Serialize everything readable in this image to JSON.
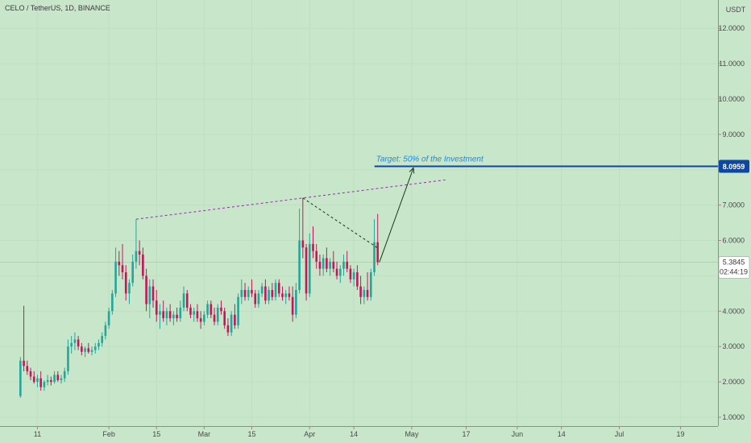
{
  "header": {
    "symbol_info": "CELO / TetherUS, 1D, BINANCE"
  },
  "colors": {
    "background": "#c8e6c9",
    "up": "#26a69a",
    "down": "#c2185b",
    "accent": "#0d47a1",
    "resistance": "#9c27b0",
    "annotation_text": "#1e88e5"
  },
  "chart_data": {
    "type": "candlestick",
    "currency_label": "USDT",
    "y_ticks": [
      "1.0000",
      "2.0000",
      "3.0000",
      "4.0000",
      "5.0000",
      "6.0000",
      "7.0000",
      "8.0000",
      "9.0000",
      "10.0000",
      "11.0000",
      "12.0000"
    ],
    "y_range": [
      0.75,
      12.8
    ],
    "x_ticks": [
      {
        "label": "11",
        "date": "2021-01-11"
      },
      {
        "label": "Feb",
        "date": "2021-02-01"
      },
      {
        "label": "15",
        "date": "2021-02-15"
      },
      {
        "label": "Mar",
        "date": "2021-03-01"
      },
      {
        "label": "15",
        "date": "2021-03-15"
      },
      {
        "label": "Apr",
        "date": "2021-04-01"
      },
      {
        "label": "14",
        "date": "2021-04-14"
      },
      {
        "label": "May",
        "date": "2021-05-01"
      },
      {
        "label": "17",
        "date": "2021-05-17"
      },
      {
        "label": "Jun",
        "date": "2021-06-01"
      },
      {
        "label": "14",
        "date": "2021-06-14"
      },
      {
        "label": "Jul",
        "date": "2021-07-01"
      },
      {
        "label": "19",
        "date": "2021-07-19"
      }
    ],
    "x_range": [
      "2020-12-31",
      "2021-07-30"
    ],
    "start_date": "2021-01-06",
    "candles": [
      [
        1.6,
        2.7,
        1.55,
        2.6
      ],
      [
        2.6,
        4.15,
        2.3,
        2.45
      ],
      [
        2.45,
        2.6,
        2.2,
        2.3
      ],
      [
        2.3,
        2.4,
        2.05,
        2.15
      ],
      [
        2.15,
        2.3,
        1.95,
        2.0
      ],
      [
        2.0,
        2.2,
        1.85,
        2.1
      ],
      [
        2.1,
        2.3,
        1.75,
        1.85
      ],
      [
        1.85,
        2.05,
        1.75,
        2.0
      ],
      [
        2.0,
        2.2,
        1.9,
        2.05
      ],
      [
        2.05,
        2.15,
        1.9,
        2.0
      ],
      [
        2.0,
        2.3,
        1.95,
        2.2
      ],
      [
        2.2,
        2.3,
        2.0,
        2.05
      ],
      [
        2.05,
        2.2,
        1.95,
        2.1
      ],
      [
        2.1,
        2.4,
        2.0,
        2.3
      ],
      [
        2.3,
        3.2,
        2.2,
        3.0
      ],
      [
        3.0,
        3.3,
        2.8,
        3.1
      ],
      [
        3.1,
        3.4,
        2.9,
        3.2
      ],
      [
        3.2,
        3.3,
        2.9,
        3.0
      ],
      [
        3.0,
        3.1,
        2.75,
        2.85
      ],
      [
        2.85,
        3.0,
        2.7,
        2.95
      ],
      [
        2.95,
        3.1,
        2.8,
        2.85
      ],
      [
        2.85,
        3.0,
        2.75,
        2.9
      ],
      [
        2.9,
        3.1,
        2.8,
        3.0
      ],
      [
        3.0,
        3.2,
        2.9,
        3.1
      ],
      [
        3.1,
        3.4,
        3.0,
        3.3
      ],
      [
        3.3,
        3.7,
        3.2,
        3.6
      ],
      [
        3.6,
        4.1,
        3.5,
        4.0
      ],
      [
        4.0,
        4.6,
        3.9,
        4.5
      ],
      [
        4.5,
        5.8,
        4.4,
        5.4
      ],
      [
        5.4,
        5.7,
        5.0,
        5.3
      ],
      [
        5.3,
        5.9,
        4.9,
        5.1
      ],
      [
        5.1,
        5.3,
        4.3,
        4.5
      ],
      [
        4.5,
        4.9,
        4.2,
        4.8
      ],
      [
        4.8,
        5.6,
        4.7,
        5.4
      ],
      [
        5.4,
        6.6,
        5.2,
        5.7
      ],
      [
        5.7,
        6.0,
        5.3,
        5.6
      ],
      [
        5.6,
        5.8,
        4.9,
        5.0
      ],
      [
        5.0,
        5.2,
        4.0,
        4.2
      ],
      [
        4.2,
        4.9,
        3.8,
        4.7
      ],
      [
        4.7,
        4.9,
        4.1,
        4.3
      ],
      [
        4.3,
        4.6,
        3.7,
        3.9
      ],
      [
        3.9,
        4.2,
        3.5,
        4.0
      ],
      [
        4.0,
        4.3,
        3.7,
        3.8
      ],
      [
        3.8,
        4.1,
        3.6,
        4.0
      ],
      [
        4.0,
        4.2,
        3.7,
        3.8
      ],
      [
        3.8,
        4.0,
        3.6,
        3.9
      ],
      [
        3.9,
        4.1,
        3.7,
        3.8
      ],
      [
        3.8,
        4.3,
        3.7,
        4.1
      ],
      [
        4.1,
        4.7,
        4.0,
        4.5
      ],
      [
        4.5,
        4.6,
        4.0,
        4.1
      ],
      [
        4.1,
        4.2,
        3.8,
        3.9
      ],
      [
        3.9,
        4.1,
        3.7,
        4.0
      ],
      [
        4.0,
        4.2,
        3.7,
        3.8
      ],
      [
        3.8,
        4.0,
        3.5,
        3.7
      ],
      [
        3.7,
        4.0,
        3.6,
        3.9
      ],
      [
        3.9,
        4.3,
        3.8,
        4.2
      ],
      [
        4.2,
        4.3,
        3.8,
        3.9
      ],
      [
        3.9,
        4.1,
        3.6,
        3.7
      ],
      [
        3.7,
        4.2,
        3.6,
        4.1
      ],
      [
        4.1,
        4.3,
        3.9,
        4.0
      ],
      [
        4.0,
        4.1,
        3.5,
        3.6
      ],
      [
        3.6,
        3.8,
        3.3,
        3.4
      ],
      [
        3.4,
        4.0,
        3.3,
        3.9
      ],
      [
        3.9,
        4.2,
        3.5,
        3.6
      ],
      [
        3.6,
        4.5,
        3.5,
        4.4
      ],
      [
        4.4,
        4.9,
        4.2,
        4.6
      ],
      [
        4.6,
        4.8,
        4.3,
        4.4
      ],
      [
        4.4,
        4.7,
        4.3,
        4.6
      ],
      [
        4.6,
        4.9,
        4.4,
        4.5
      ],
      [
        4.5,
        4.6,
        4.1,
        4.2
      ],
      [
        4.2,
        4.6,
        4.1,
        4.5
      ],
      [
        4.5,
        4.8,
        4.4,
        4.7
      ],
      [
        4.7,
        4.9,
        4.2,
        4.3
      ],
      [
        4.3,
        4.7,
        4.2,
        4.6
      ],
      [
        4.6,
        4.8,
        4.3,
        4.4
      ],
      [
        4.4,
        4.9,
        4.3,
        4.8
      ],
      [
        4.8,
        4.9,
        4.4,
        4.5
      ],
      [
        4.5,
        4.7,
        4.3,
        4.4
      ],
      [
        4.4,
        4.6,
        4.2,
        4.5
      ],
      [
        4.5,
        4.7,
        4.3,
        4.4
      ],
      [
        4.4,
        4.7,
        3.7,
        3.9
      ],
      [
        3.9,
        4.8,
        3.8,
        4.6
      ],
      [
        4.6,
        6.9,
        4.5,
        6.0
      ],
      [
        6.0,
        7.2,
        5.5,
        5.8
      ],
      [
        5.8,
        5.9,
        4.3,
        4.5
      ],
      [
        4.5,
        6.2,
        4.4,
        5.9
      ],
      [
        5.9,
        6.4,
        5.5,
        5.7
      ],
      [
        5.7,
        5.9,
        5.2,
        5.4
      ],
      [
        5.4,
        5.6,
        5.0,
        5.2
      ],
      [
        5.2,
        5.6,
        5.0,
        5.5
      ],
      [
        5.5,
        5.8,
        5.1,
        5.2
      ],
      [
        5.2,
        5.5,
        5.0,
        5.4
      ],
      [
        5.4,
        5.7,
        5.1,
        5.2
      ],
      [
        5.2,
        5.4,
        4.9,
        5.0
      ],
      [
        5.0,
        5.3,
        4.8,
        5.2
      ],
      [
        5.2,
        5.6,
        5.0,
        5.4
      ],
      [
        5.4,
        5.7,
        5.1,
        5.2
      ],
      [
        5.2,
        5.3,
        4.8,
        4.9
      ],
      [
        4.9,
        5.2,
        4.7,
        5.1
      ],
      [
        5.1,
        5.3,
        4.6,
        4.7
      ],
      [
        4.7,
        5.0,
        4.2,
        4.4
      ],
      [
        4.4,
        4.7,
        4.2,
        4.6
      ],
      [
        4.6,
        5.1,
        4.3,
        4.4
      ],
      [
        4.4,
        5.2,
        4.3,
        5.1
      ],
      [
        5.1,
        6.6,
        5.0,
        5.95
      ],
      [
        5.95,
        6.75,
        5.3,
        5.385
      ]
    ],
    "current_price": "5.3845",
    "countdown": "02:44:19",
    "target_price": "8.0959",
    "annotations": [
      {
        "text": "Target: 50% of the Investment"
      }
    ]
  }
}
